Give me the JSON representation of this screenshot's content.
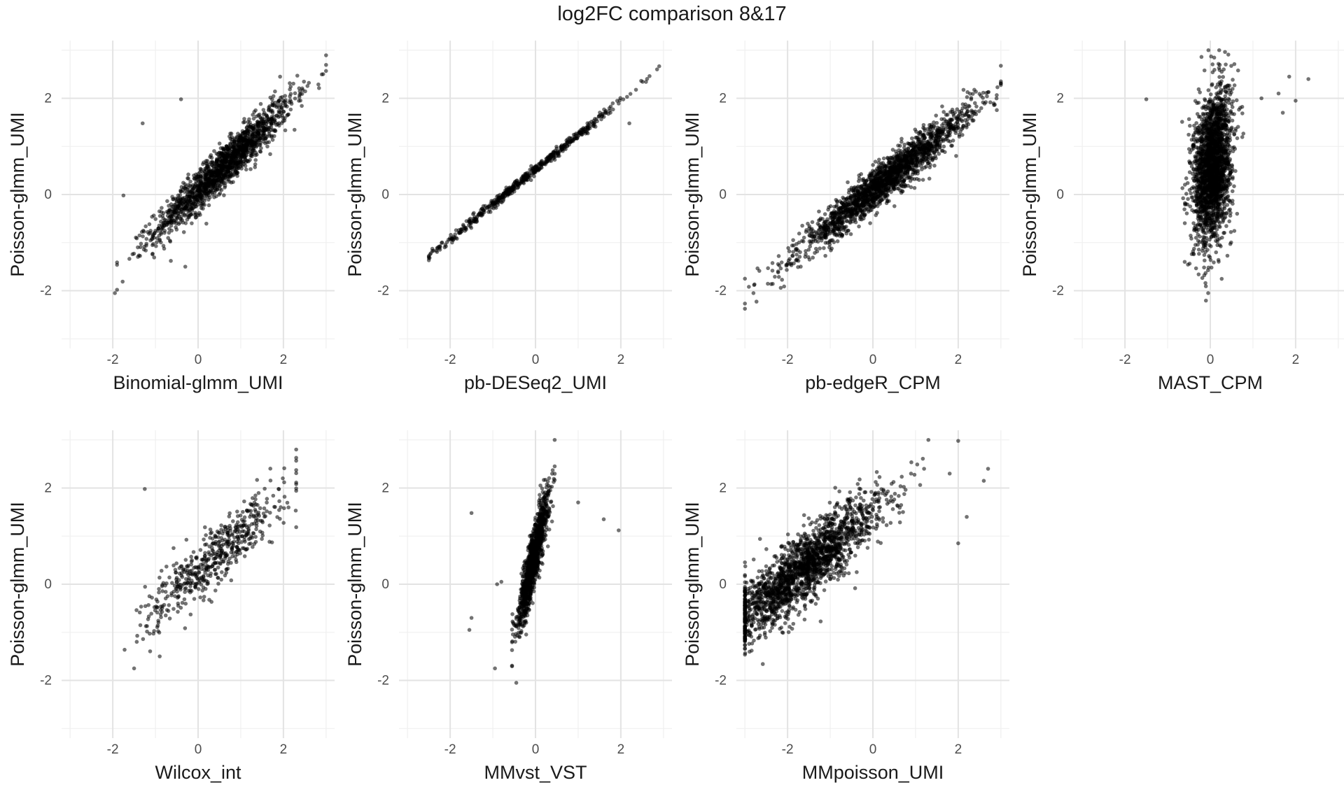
{
  "figure": {
    "title": "log2FC comparison 8&17"
  },
  "chart_data": [
    {
      "type": "scatter",
      "xlabel": "Binomial-glmm_UMI",
      "ylabel": "Poisson-glmm_UMI",
      "xlim": [
        -3.2,
        3.2
      ],
      "ylim": [
        -3.2,
        3.2
      ],
      "xticks": [
        -2,
        0,
        2
      ],
      "yticks": [
        -2,
        0,
        2
      ],
      "grid": true,
      "points": {
        "n": 1600,
        "model": "y = a*x + b + noise",
        "slope": 0.84,
        "intercept": 0.08,
        "x_mean": 0.6,
        "x_sd": 0.8,
        "x_min": -1.9,
        "x_max": 3.0,
        "noise_sd": 0.22,
        "outliers": [
          [
            -0.4,
            1.98
          ],
          [
            -1.3,
            1.48
          ],
          [
            -1.75,
            -0.02
          ],
          [
            -1.95,
            -2.05
          ],
          [
            -0.3,
            -1.5
          ]
        ]
      }
    },
    {
      "type": "scatter",
      "xlabel": "pb-DESeq2_UMI",
      "ylabel": "Poisson-glmm_UMI",
      "xlim": [
        -3.2,
        3.2
      ],
      "ylim": [
        -3.2,
        3.2
      ],
      "xticks": [
        -2,
        0,
        2
      ],
      "yticks": [
        -2,
        0,
        2
      ],
      "grid": true,
      "points": {
        "n": 550,
        "model": "y = a*x + b + noise",
        "slope": 0.72,
        "intercept": 0.52,
        "x_mean": -0.2,
        "x_sd": 1.1,
        "x_min": -2.5,
        "x_max": 2.9,
        "noise_sd": 0.05,
        "outliers": [
          [
            2.2,
            1.48
          ]
        ]
      }
    },
    {
      "type": "scatter",
      "xlabel": "pb-edgeR_CPM",
      "ylabel": "Poisson-glmm_UMI",
      "xlim": [
        -3.2,
        3.2
      ],
      "ylim": [
        -3.2,
        3.2
      ],
      "xticks": [
        -2,
        0,
        2
      ],
      "yticks": [
        -2,
        0,
        2
      ],
      "grid": true,
      "points": {
        "n": 2000,
        "model": "y = a*x + b + noise",
        "slope": 0.72,
        "intercept": 0.08,
        "x_mean": 0.3,
        "x_sd": 1.0,
        "x_min": -3.0,
        "x_max": 3.0,
        "noise_sd": 0.2,
        "outliers": [
          [
            -2.8,
            -2.05
          ],
          [
            -3.0,
            -1.75
          ]
        ]
      }
    },
    {
      "type": "scatter",
      "xlabel": "MAST_CPM",
      "ylabel": "Poisson-glmm_UMI",
      "xlim": [
        -3.2,
        3.2
      ],
      "ylim": [
        -3.2,
        3.2
      ],
      "xticks": [
        -2,
        0,
        2
      ],
      "yticks": [
        -2,
        0,
        2
      ],
      "grid": true,
      "points": {
        "n": 2200,
        "model": "y = a*x + b + noise",
        "slope": 1.0,
        "intercept": 0.55,
        "x_mean": 0.05,
        "x_sd": 0.22,
        "x_min": -1.1,
        "x_max": 1.2,
        "noise_sd": 0.75,
        "outliers": [
          [
            -1.5,
            1.98
          ],
          [
            2.3,
            2.4
          ],
          [
            2.0,
            1.95
          ],
          [
            1.85,
            2.45
          ],
          [
            1.6,
            2.1
          ],
          [
            1.2,
            2.0
          ],
          [
            1.7,
            1.7
          ],
          [
            -0.6,
            -1.4
          ],
          [
            -0.05,
            -2.05
          ]
        ]
      }
    },
    {
      "type": "scatter",
      "xlabel": "Wilcox_int",
      "ylabel": "Poisson-glmm_UMI",
      "xlim": [
        -3.2,
        3.2
      ],
      "ylim": [
        -3.2,
        3.2
      ],
      "xticks": [
        -2,
        0,
        2
      ],
      "yticks": [
        -2,
        0,
        2
      ],
      "grid": true,
      "points": {
        "n": 550,
        "model": "y = a*x + b + noise",
        "slope": 0.78,
        "intercept": 0.25,
        "x_mean": 0.4,
        "x_sd": 0.8,
        "x_min": -1.9,
        "x_max": 2.3,
        "noise_sd": 0.3,
        "outliers": [
          [
            -1.25,
            1.98
          ],
          [
            -1.5,
            -1.75
          ],
          [
            -0.9,
            -1.5
          ],
          [
            2.3,
            2.8
          ]
        ]
      }
    },
    {
      "type": "scatter",
      "xlabel": "MMvst_VST",
      "ylabel": "Poisson-glmm_UMI",
      "xlim": [
        -3.2,
        3.2
      ],
      "ylim": [
        -3.2,
        3.2
      ],
      "xticks": [
        -2,
        0,
        2
      ],
      "yticks": [
        -2,
        0,
        2
      ],
      "grid": true,
      "points": {
        "n": 1200,
        "model": "y = a*x + b + noise",
        "slope": 3.5,
        "intercept": 0.7,
        "x_mean": -0.05,
        "x_sd": 0.18,
        "x_min": -0.55,
        "x_max": 0.45,
        "noise_sd": 0.3,
        "outliers": [
          [
            -1.5,
            1.48
          ],
          [
            -1.55,
            -0.95
          ],
          [
            -1.5,
            -0.7
          ],
          [
            -0.95,
            -1.75
          ],
          [
            -0.45,
            -2.05
          ],
          [
            1.95,
            1.12
          ],
          [
            1.6,
            1.35
          ],
          [
            1.0,
            1.7
          ],
          [
            -0.8,
            0.05
          ],
          [
            -0.9,
            0.0
          ]
        ]
      }
    },
    {
      "type": "scatter",
      "xlabel": "MMpoisson_UMI",
      "ylabel": "Poisson-glmm_UMI",
      "xlim": [
        -3.2,
        3.2
      ],
      "ylim": [
        -3.2,
        3.2
      ],
      "xticks": [
        -2,
        0,
        2
      ],
      "yticks": [
        -2,
        0,
        2
      ],
      "grid": true,
      "points": {
        "n": 2000,
        "model": "y = a*x + b + noise",
        "slope": 0.72,
        "intercept": 1.5,
        "x_mean": -1.6,
        "x_sd": 0.9,
        "x_min": -3.0,
        "x_max": 2.7,
        "noise_sd": 0.35,
        "outliers": [
          [
            2.0,
            2.98
          ],
          [
            2.7,
            2.4
          ],
          [
            2.6,
            2.15
          ],
          [
            2.0,
            0.85
          ],
          [
            2.2,
            1.4
          ],
          [
            1.8,
            2.3
          ],
          [
            1.2,
            2.4
          ]
        ]
      }
    }
  ]
}
